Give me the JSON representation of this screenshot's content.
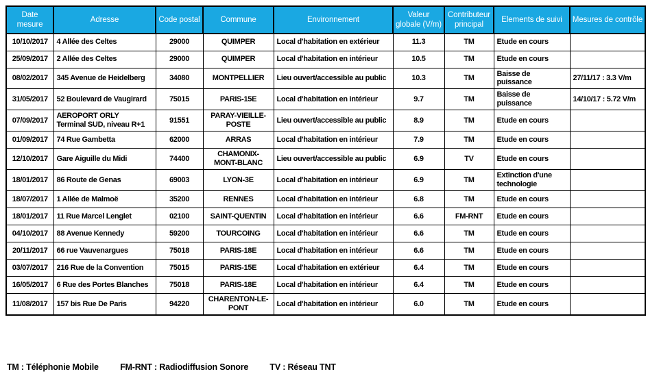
{
  "colors": {
    "header_bg": "#1AA8E2",
    "header_text": "#FFFFFF",
    "border": "#000000",
    "text": "#000000",
    "page_bg": "#FFFFFF"
  },
  "table": {
    "columns": [
      "Date mesure",
      "Adresse",
      "Code postal",
      "Commune",
      "Environnement",
      "Valeur\nglobale (V/m)",
      "Contributeur\nprincipal",
      "Elements de suivi",
      "Mesures de contrôle"
    ],
    "rows": [
      [
        "10/10/2017",
        "4 Allée des Celtes",
        "29000",
        "QUIMPER",
        "Local d'habitation en extérieur",
        "11.3",
        "TM",
        "Etude en cours",
        ""
      ],
      [
        "25/09/2017",
        "2 Allée des Celtes",
        "29000",
        "QUIMPER",
        "Local d'habitation en intérieur",
        "10.5",
        "TM",
        "Etude en cours",
        ""
      ],
      [
        "08/02/2017",
        "345 Avenue de Heidelberg",
        "34080",
        "MONTPELLIER",
        "Lieu ouvert/accessible au public",
        "10.3",
        "TM",
        "Baisse de puissance",
        "27/11/17 : 3.3 V/m"
      ],
      [
        "31/05/2017",
        "52 Boulevard de Vaugirard",
        "75015",
        "PARIS-15E",
        "Local d'habitation en intérieur",
        "9.7",
        "TM",
        "Baisse de puissance",
        "14/10/17 : 5.72 V/m"
      ],
      [
        "07/09/2017",
        "AEROPORT ORLY\nTerminal SUD, niveau R+1",
        "91551",
        "PARAY-VIEILLE-POSTE",
        "Lieu ouvert/accessible au public",
        "8.9",
        "TM",
        "Etude en cours",
        ""
      ],
      [
        "01/09/2017",
        "74 Rue Gambetta",
        "62000",
        "ARRAS",
        "Local d'habitation en intérieur",
        "7.9",
        "TM",
        "Etude en cours",
        ""
      ],
      [
        "12/10/2017",
        "Gare Aiguille du Midi",
        "74400",
        "CHAMONIX-MONT-BLANC",
        "Lieu ouvert/accessible au public",
        "6.9",
        "TV",
        "Etude en cours",
        ""
      ],
      [
        "18/01/2017",
        "86 Route de Genas",
        "69003",
        "LYON-3E",
        "Local d'habitation en intérieur",
        "6.9",
        "TM",
        "Extinction d'une technologie",
        ""
      ],
      [
        "18/07/2017",
        "1 Allée de Malmoë",
        "35200",
        "RENNES",
        "Local d'habitation en intérieur",
        "6.8",
        "TM",
        "Etude en cours",
        ""
      ],
      [
        "18/01/2017",
        "11 Rue Marcel Lenglet",
        "02100",
        "SAINT-QUENTIN",
        "Local d'habitation en intérieur",
        "6.6",
        "FM-RNT",
        "Etude en cours",
        ""
      ],
      [
        "04/10/2017",
        "88 Avenue Kennedy",
        "59200",
        "TOURCOING",
        "Local d'habitation en intérieur",
        "6.6",
        "TM",
        "Etude en cours",
        ""
      ],
      [
        "20/11/2017",
        "66 rue Vauvenargues",
        "75018",
        "PARIS-18E",
        "Local d'habitation en intérieur",
        "6.6",
        "TM",
        "Etude en cours",
        ""
      ],
      [
        "03/07/2017",
        "216 Rue de la Convention",
        "75015",
        "PARIS-15E",
        "Local d'habitation en extérieur",
        "6.4",
        "TM",
        "Etude en cours",
        ""
      ],
      [
        "16/05/2017",
        "6 Rue des Portes Blanches",
        "75018",
        "PARIS-18E",
        "Local d'habitation en intérieur",
        "6.4",
        "TM",
        "Etude en cours",
        ""
      ],
      [
        "11/08/2017",
        "157 bis Rue De Paris",
        "94220",
        "CHARENTON-LE-PONT",
        "Local d'habitation en intérieur",
        "6.0",
        "TM",
        "Etude en cours",
        ""
      ]
    ]
  },
  "legend": {
    "items": [
      "TM : Téléphonie Mobile",
      "FM-RNT : Radiodiffusion Sonore",
      "TV : Réseau TNT"
    ]
  }
}
